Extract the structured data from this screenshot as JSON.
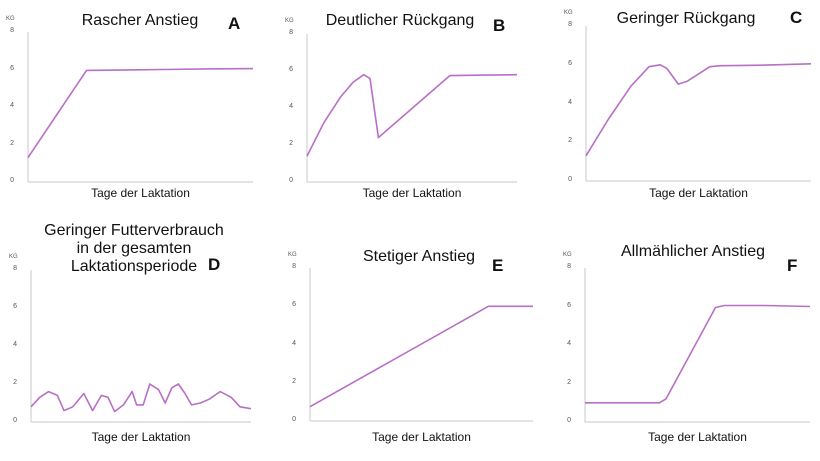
{
  "chart_data": [
    {
      "id": "A",
      "type": "line",
      "title": "Rascher Anstieg",
      "letter": "A",
      "xlabel": "Tage der Laktation",
      "ylabel": "KG",
      "ylim": [
        0,
        8
      ],
      "yticks": [
        0,
        2,
        4,
        6,
        8
      ],
      "xlim": [
        0,
        100
      ],
      "grid": false,
      "x": [
        0,
        26,
        40,
        60,
        80,
        100
      ],
      "y": [
        1.3,
        5.95,
        5.97,
        6.0,
        6.03,
        6.05
      ]
    },
    {
      "id": "B",
      "type": "line",
      "title": "Deutlicher Rückgang",
      "letter": "B",
      "xlabel": "Tage der Laktation",
      "ylabel": "KG",
      "ylim": [
        0,
        8
      ],
      "yticks": [
        0,
        2,
        4,
        6,
        8
      ],
      "xlim": [
        0,
        100
      ],
      "grid": false,
      "x": [
        0,
        8,
        16,
        22,
        27,
        30,
        34,
        68,
        85,
        100
      ],
      "y": [
        1.4,
        3.2,
        4.6,
        5.4,
        5.8,
        5.6,
        2.4,
        5.75,
        5.78,
        5.8
      ]
    },
    {
      "id": "C",
      "type": "line",
      "title": "Geringer Rückgang",
      "letter": "C",
      "xlabel": "Tage der Laktation",
      "ylabel": "KG",
      "ylim": [
        0,
        8
      ],
      "yticks": [
        0,
        2,
        4,
        6,
        8
      ],
      "xlim": [
        0,
        100
      ],
      "grid": false,
      "x": [
        0,
        10,
        20,
        28,
        33,
        36,
        41,
        45,
        55,
        60,
        80,
        100
      ],
      "y": [
        1.3,
        3.2,
        4.9,
        5.9,
        6.0,
        5.8,
        5.0,
        5.15,
        5.9,
        5.95,
        5.98,
        6.05
      ]
    },
    {
      "id": "D",
      "type": "line",
      "title": "Geringer Futterverbrauch\nin der gesamten\nLaktationsperiode",
      "letter": "D",
      "xlabel": "Tage der Laktation",
      "ylabel": "KG",
      "ylim": [
        0,
        8
      ],
      "yticks": [
        0,
        2,
        4,
        6,
        8
      ],
      "xlim": [
        0,
        100
      ],
      "grid": false,
      "x": [
        0,
        4,
        8,
        12,
        15,
        19,
        24,
        28,
        32,
        35,
        38,
        42,
        46,
        48,
        51,
        54,
        58,
        61,
        64,
        67,
        70,
        73,
        77,
        81,
        86,
        91,
        95,
        100
      ],
      "y": [
        0.8,
        1.3,
        1.6,
        1.4,
        0.6,
        0.8,
        1.5,
        0.6,
        1.4,
        1.3,
        0.55,
        0.9,
        1.6,
        0.9,
        0.9,
        2.0,
        1.7,
        1.0,
        1.8,
        2.0,
        1.5,
        0.9,
        1.0,
        1.2,
        1.6,
        1.3,
        0.8,
        0.7
      ]
    },
    {
      "id": "E",
      "type": "line",
      "title": "Stetiger Anstieg",
      "letter": "E",
      "xlabel": "Tage der Laktation",
      "ylabel": "KG",
      "ylim": [
        0,
        8
      ],
      "yticks": [
        0,
        2,
        4,
        6,
        8
      ],
      "xlim": [
        0,
        100
      ],
      "grid": false,
      "x": [
        0,
        80,
        100
      ],
      "y": [
        0.75,
        6.0,
        6.0
      ]
    },
    {
      "id": "F",
      "type": "line",
      "title": "Allmählicher Anstieg",
      "letter": "F",
      "xlabel": "Tage der Laktation",
      "ylabel": "KG",
      "ylim": [
        0,
        8
      ],
      "yticks": [
        0,
        2,
        4,
        6,
        8
      ],
      "xlim": [
        0,
        100
      ],
      "grid": false,
      "x": [
        0,
        33,
        36,
        58,
        62,
        80,
        100
      ],
      "y": [
        1.0,
        1.0,
        1.2,
        5.95,
        6.05,
        6.05,
        6.0
      ]
    }
  ],
  "colors": {
    "line": "#b86fc6",
    "axis": "#c8c8c8",
    "text": "#111111"
  }
}
